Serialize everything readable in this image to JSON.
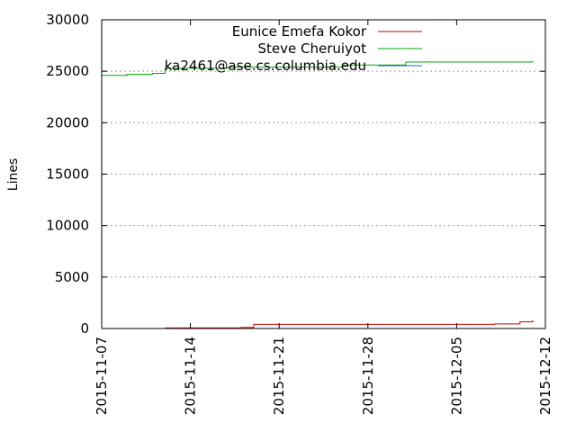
{
  "chart_data": {
    "type": "line",
    "title": "",
    "xlabel": "",
    "ylabel": "Lines",
    "x_range": [
      "2015-11-07",
      "2015-12-12"
    ],
    "ylim": [
      0,
      30000
    ],
    "x_ticks": [
      "2015-11-07",
      "2015-11-14",
      "2015-11-21",
      "2015-11-28",
      "2015-12-05",
      "2015-12-12"
    ],
    "y_ticks": [
      0,
      5000,
      10000,
      15000,
      20000,
      25000,
      30000
    ],
    "grid": "horizontal dotted",
    "legend_position": "top-right",
    "series": [
      {
        "name": "Eunice Emefa Kokor",
        "color": "#cc0000",
        "x": [
          "2015-11-12",
          "2015-11-18",
          "2015-11-19",
          "2015-12-01",
          "2015-12-08",
          "2015-12-10",
          "2015-12-11"
        ],
        "y": [
          50,
          100,
          400,
          400,
          450,
          650,
          800
        ]
      },
      {
        "name": "Steve Cheruiyot",
        "color": "#00aa00",
        "x": [
          "2015-11-07",
          "2015-11-09",
          "2015-11-11",
          "2015-11-12",
          "2015-11-17",
          "2015-11-26",
          "2015-12-01",
          "2015-12-09",
          "2015-12-11"
        ],
        "y": [
          24600,
          24700,
          24800,
          25300,
          25400,
          25600,
          25900,
          25900,
          26000
        ]
      },
      {
        "name": "ka2461@ase.cs.columbia.edu",
        "color": "#2266cc",
        "x": [],
        "y": []
      }
    ]
  }
}
